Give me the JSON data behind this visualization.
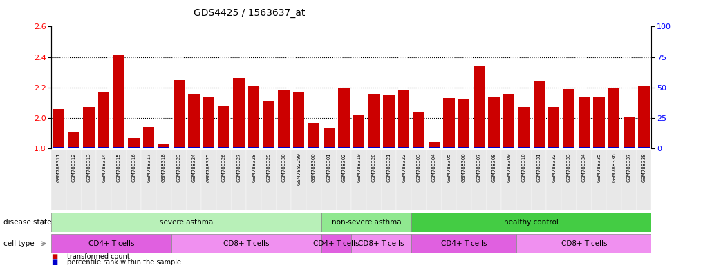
{
  "title": "GDS4425 / 1563637_at",
  "samples": [
    "GSM788311",
    "GSM788312",
    "GSM788313",
    "GSM788314",
    "GSM788315",
    "GSM788316",
    "GSM788317",
    "GSM788318",
    "GSM788323",
    "GSM788324",
    "GSM788325",
    "GSM788326",
    "GSM788327",
    "GSM788328",
    "GSM788329",
    "GSM788330",
    "GSM7882299",
    "GSM788300",
    "GSM788301",
    "GSM788302",
    "GSM788319",
    "GSM788320",
    "GSM788321",
    "GSM788322",
    "GSM788303",
    "GSM788304",
    "GSM788305",
    "GSM788306",
    "GSM788307",
    "GSM788308",
    "GSM788309",
    "GSM788310",
    "GSM788331",
    "GSM788332",
    "GSM788333",
    "GSM788334",
    "GSM788335",
    "GSM788336",
    "GSM788337",
    "GSM788338"
  ],
  "red_values": [
    2.06,
    1.91,
    2.07,
    2.17,
    2.41,
    1.87,
    1.94,
    1.83,
    2.25,
    2.16,
    2.14,
    2.08,
    2.26,
    2.21,
    2.11,
    2.18,
    2.17,
    1.97,
    1.93,
    2.2,
    2.02,
    2.16,
    2.15,
    2.18,
    2.04,
    1.84,
    2.13,
    2.12,
    2.34,
    2.14,
    2.16,
    2.07,
    2.24,
    2.07,
    2.19,
    2.14,
    2.14,
    2.2,
    2.01,
    2.21
  ],
  "blue_heights": [
    0.008,
    0.008,
    0.008,
    0.008,
    0.008,
    0.008,
    0.008,
    0.01,
    0.008,
    0.008,
    0.008,
    0.008,
    0.008,
    0.008,
    0.008,
    0.008,
    0.008,
    0.008,
    0.008,
    0.008,
    0.008,
    0.008,
    0.008,
    0.008,
    0.008,
    0.008,
    0.008,
    0.008,
    0.01,
    0.008,
    0.008,
    0.008,
    0.008,
    0.008,
    0.008,
    0.008,
    0.008,
    0.008,
    0.008,
    0.008
  ],
  "ylim_left": [
    1.8,
    2.6
  ],
  "ylim_right": [
    0,
    100
  ],
  "yticks_left": [
    1.8,
    2.0,
    2.2,
    2.4,
    2.6
  ],
  "yticks_right": [
    0,
    25,
    50,
    75,
    100
  ],
  "disease_groups": [
    {
      "label": "severe asthma",
      "start": 0,
      "end": 18,
      "color": "#b8f0b8"
    },
    {
      "label": "non-severe asthma",
      "start": 18,
      "end": 24,
      "color": "#90e890"
    },
    {
      "label": "healthy control",
      "start": 24,
      "end": 40,
      "color": "#44cc44"
    }
  ],
  "cell_groups": [
    {
      "label": "CD4+ T-cells",
      "start": 0,
      "end": 8,
      "color": "#e060e0"
    },
    {
      "label": "CD8+ T-cells",
      "start": 8,
      "end": 18,
      "color": "#f090f0"
    },
    {
      "label": "CD4+ T-cells",
      "start": 18,
      "end": 20,
      "color": "#e060e0"
    },
    {
      "label": "CD8+ T-cells",
      "start": 20,
      "end": 24,
      "color": "#f090f0"
    },
    {
      "label": "CD4+ T-cells",
      "start": 24,
      "end": 31,
      "color": "#e060e0"
    },
    {
      "label": "CD8+ T-cells",
      "start": 31,
      "end": 40,
      "color": "#f090f0"
    }
  ],
  "bar_color_red": "#cc0000",
  "bar_color_blue": "#0000cc",
  "bar_width": 0.75,
  "baseline": 1.8,
  "background_color": "#ffffff"
}
